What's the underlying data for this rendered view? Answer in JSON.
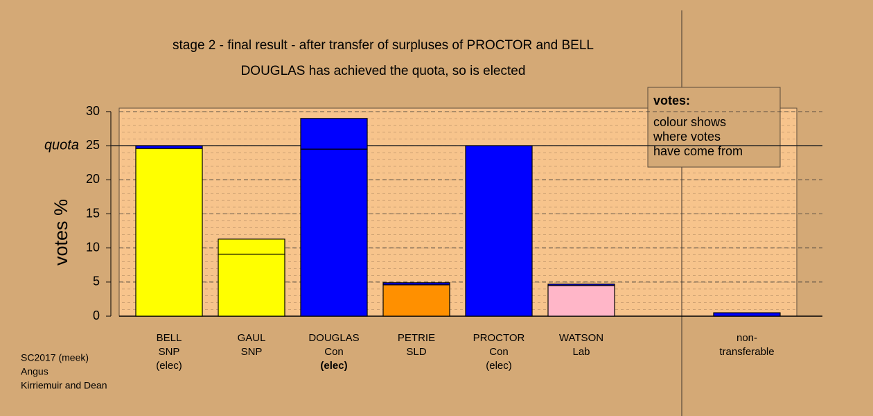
{
  "chart_data": {
    "type": "stacked_bar",
    "title": "stage 2 - final result - after transfer of surpluses of PROCTOR and BELL",
    "subtitle": "DOUGLAS has achieved the quota, so is elected",
    "ylabel": "votes %",
    "ylim": [
      0,
      30
    ],
    "yticks": [
      0,
      5,
      10,
      15,
      20,
      25,
      30
    ],
    "quota": {
      "value": 25,
      "label": "quota"
    },
    "categories": [
      {
        "lines": [
          "BELL",
          "SNP",
          "(elec)"
        ]
      },
      {
        "lines": [
          "GAUL",
          "SNP"
        ]
      },
      {
        "lines": [
          "DOUGLAS",
          "Con",
          "(elec)"
        ],
        "bold_last": true
      },
      {
        "lines": [
          "PETRIE",
          "SLD"
        ]
      },
      {
        "lines": [
          "PROCTOR",
          "Con",
          "(elec)"
        ]
      },
      {
        "lines": [
          "WATSON",
          "Lab"
        ]
      },
      {
        "lines": [
          "non-",
          "transferable"
        ]
      }
    ],
    "bars": [
      {
        "segments": [
          {
            "value": 24.6,
            "color": "#ffff00"
          },
          {
            "value": 0.4,
            "color": "#0000ff"
          }
        ]
      },
      {
        "segments": [
          {
            "value": 9.1,
            "color": "#ffff00"
          },
          {
            "value": 2.2,
            "color": "#ffff00"
          }
        ]
      },
      {
        "segments": [
          {
            "value": 24.5,
            "color": "#0000ff"
          },
          {
            "value": 4.5,
            "color": "#0000ff"
          }
        ]
      },
      {
        "segments": [
          {
            "value": 4.6,
            "color": "#ff9000"
          },
          {
            "value": 0.3,
            "color": "#0000ff"
          }
        ]
      },
      {
        "segments": [
          {
            "value": 25,
            "color": "#0000ff"
          }
        ]
      },
      {
        "segments": [
          {
            "value": 4.5,
            "color": "#ffb6c8"
          },
          {
            "value": 0.2,
            "color": "#0000ff"
          }
        ]
      },
      {
        "segments": [
          {
            "value": 0.5,
            "color": "#0000ff"
          }
        ]
      }
    ],
    "legend": {
      "title": "votes:",
      "lines": [
        "colour shows",
        "where votes",
        "have come from"
      ]
    },
    "footer": [
      "SC2017 (meek)",
      "Angus",
      "Kirriemuir and Dean"
    ]
  }
}
